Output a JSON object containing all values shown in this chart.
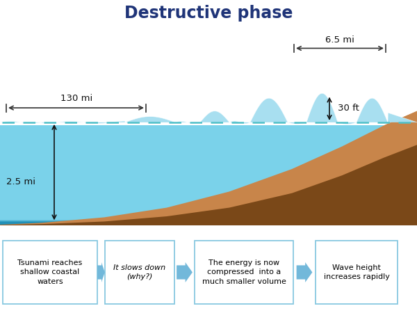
{
  "title": "Destructive phase",
  "title_color": "#1f3478",
  "bg_color": "#ffffff",
  "ocean_top_color": "#7dd4ec",
  "ocean_mid_color": "#4ab8d8",
  "ocean_deep_color": "#2090b8",
  "seafloor_light": "#c8854a",
  "seafloor_dark": "#7a4818",
  "wave_color": "#a8dff0",
  "dashed_line_color": "#50c0c8",
  "annotation_color": "#111111",
  "box_border_color": "#88c8e0",
  "box_fill_color": "#ffffff",
  "arrow_color": "#6ab4d8",
  "label_130mi": "130 mi",
  "label_65mi": "6.5 mi",
  "label_25mi": "2.5 mi",
  "label_30ft": "30 ft",
  "box_texts": [
    "Tsunami reaches\nshallow coastal\nwaters",
    "It slows down\n(why?)",
    "The energy is now\ncompressed  into a\nmuch smaller volume",
    "Wave height\nincreases rapidly"
  ]
}
